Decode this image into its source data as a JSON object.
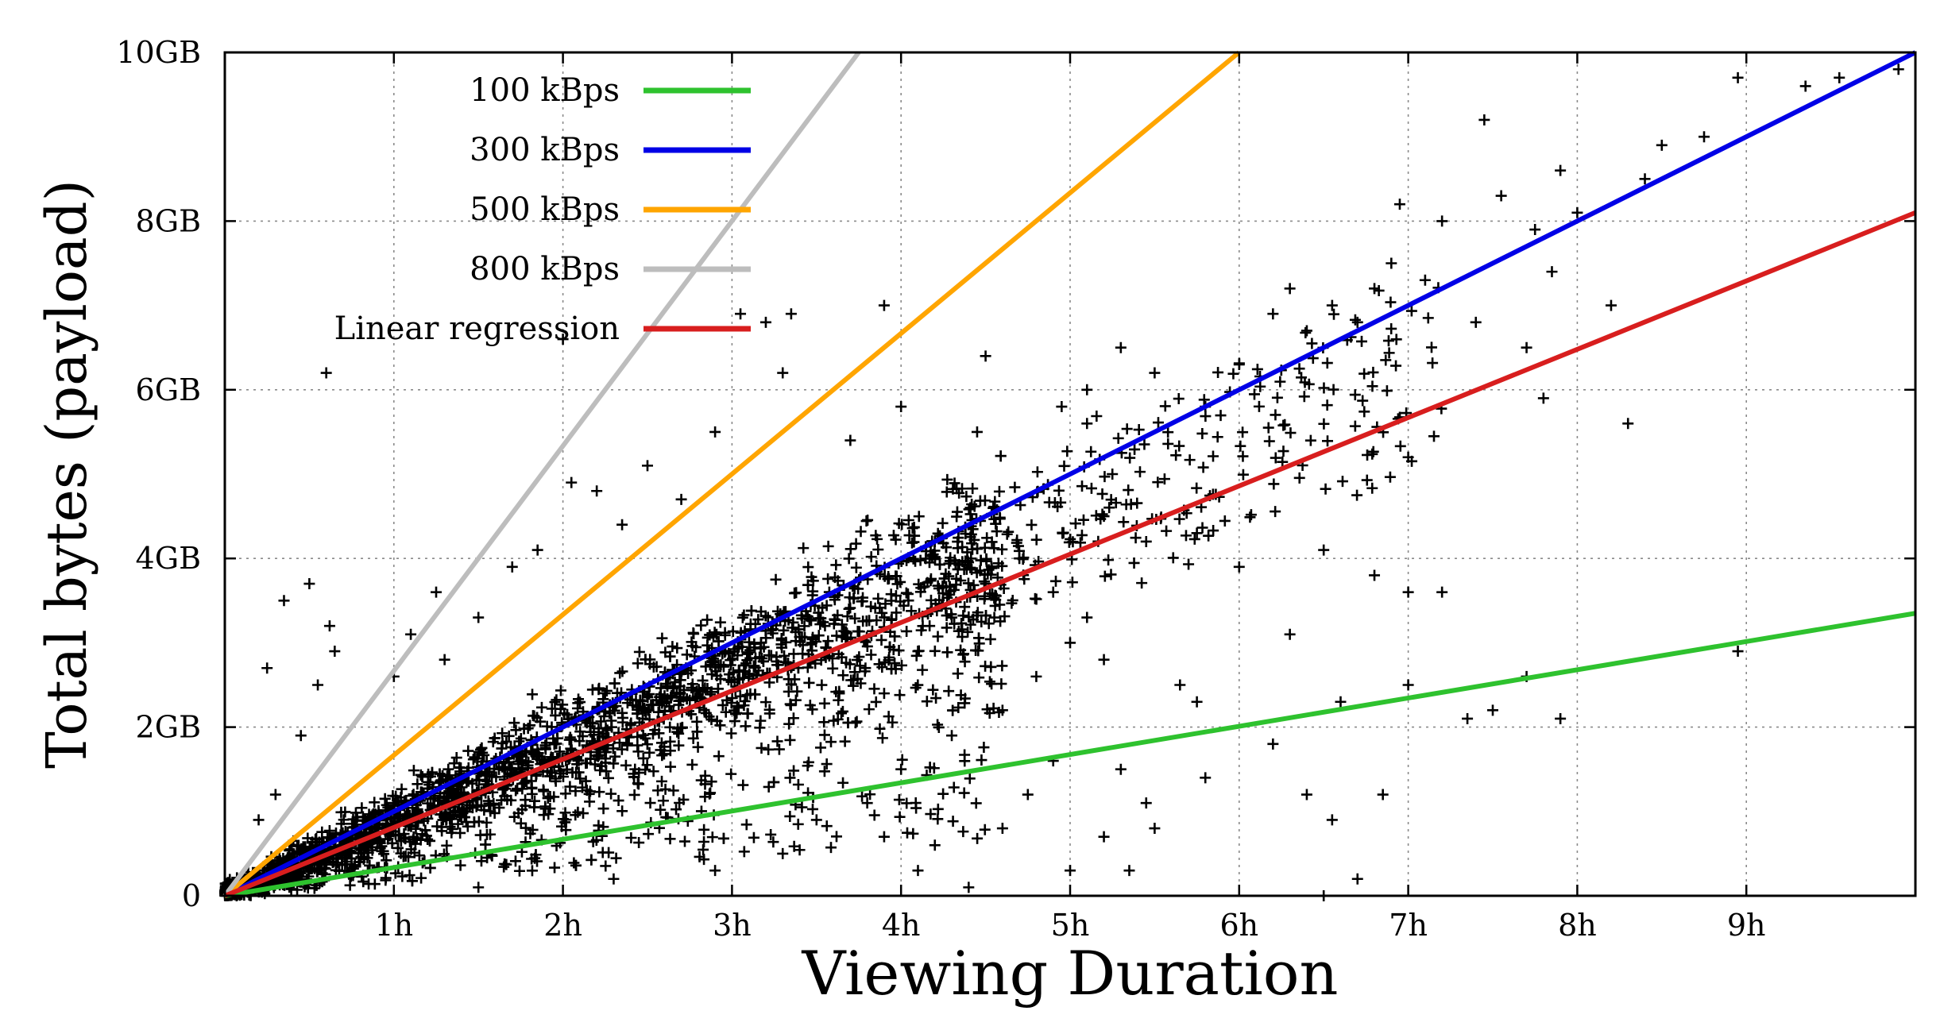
{
  "chart_data": {
    "type": "scatter",
    "title": "",
    "xlabel": "Viewing Duration",
    "ylabel": "Total bytes (payload)",
    "xlim": [
      0,
      10
    ],
    "ylim": [
      0,
      10
    ],
    "x_unit": "hours",
    "y_unit": "GB",
    "x_ticks": [
      {
        "value": 1,
        "label": "1h"
      },
      {
        "value": 2,
        "label": "2h"
      },
      {
        "value": 3,
        "label": "3h"
      },
      {
        "value": 4,
        "label": "4h"
      },
      {
        "value": 5,
        "label": "5h"
      },
      {
        "value": 6,
        "label": "6h"
      },
      {
        "value": 7,
        "label": "7h"
      },
      {
        "value": 8,
        "label": "8h"
      },
      {
        "value": 9,
        "label": "9h"
      }
    ],
    "y_ticks": [
      {
        "value": 0,
        "label": "0"
      },
      {
        "value": 2,
        "label": "2GB"
      },
      {
        "value": 4,
        "label": "4GB"
      },
      {
        "value": 6,
        "label": "6GB"
      },
      {
        "value": 8,
        "label": "8GB"
      },
      {
        "value": 10,
        "label": "10GB"
      }
    ],
    "grid": true,
    "legend_position": "top-left",
    "point_marker": "+",
    "lines": [
      {
        "name": "100 kBps",
        "color": "#2ec22e",
        "slope_gb_per_h": 0.335
      },
      {
        "name": "300 kBps",
        "color": "#0000e6",
        "slope_gb_per_h": 1.0
      },
      {
        "name": "500 kBps",
        "color": "#ffa500",
        "slope_gb_per_h": 1.667
      },
      {
        "name": "800 kBps",
        "color": "#bdbdbd",
        "slope_gb_per_h": 2.667
      },
      {
        "name": "Linear regression",
        "color": "#d81e1e",
        "slope_gb_per_h": 0.81
      }
    ],
    "points": [
      [
        0.25,
        2.7
      ],
      [
        0.35,
        3.5
      ],
      [
        0.5,
        3.7
      ],
      [
        0.6,
        6.2
      ],
      [
        0.62,
        3.2
      ],
      [
        0.65,
        2.9
      ],
      [
        0.55,
        2.5
      ],
      [
        0.45,
        1.9
      ],
      [
        0.3,
        1.2
      ],
      [
        0.2,
        0.9
      ],
      [
        1.0,
        2.6
      ],
      [
        1.1,
        3.1
      ],
      [
        1.25,
        3.6
      ],
      [
        1.3,
        2.8
      ],
      [
        1.5,
        3.3
      ],
      [
        1.7,
        3.9
      ],
      [
        1.85,
        4.1
      ],
      [
        2.0,
        6.6
      ],
      [
        2.05,
        4.9
      ],
      [
        2.2,
        4.8
      ],
      [
        2.35,
        4.4
      ],
      [
        2.5,
        5.1
      ],
      [
        2.7,
        4.7
      ],
      [
        2.9,
        5.5
      ],
      [
        3.05,
        6.9
      ],
      [
        3.2,
        6.8
      ],
      [
        3.35,
        6.9
      ],
      [
        3.3,
        6.2
      ],
      [
        3.55,
        3.2
      ],
      [
        3.7,
        5.4
      ],
      [
        3.9,
        7.0
      ],
      [
        4.0,
        5.8
      ],
      [
        4.2,
        4.2
      ],
      [
        4.45,
        5.5
      ],
      [
        4.5,
        6.4
      ],
      [
        4.95,
        5.8
      ],
      [
        5.1,
        5.6
      ],
      [
        5.25,
        5.0
      ],
      [
        5.5,
        6.2
      ],
      [
        5.45,
        4.2
      ],
      [
        5.1,
        6.0
      ],
      [
        5.3,
        6.5
      ],
      [
        5.2,
        4.5
      ],
      [
        5.8,
        5.8
      ],
      [
        5.75,
        4.3
      ],
      [
        6.0,
        6.3
      ],
      [
        6.2,
        6.9
      ],
      [
        6.3,
        7.2
      ],
      [
        6.4,
        6.7
      ],
      [
        6.55,
        7.0
      ],
      [
        6.7,
        6.8
      ],
      [
        6.8,
        7.2
      ],
      [
        6.9,
        7.5
      ],
      [
        6.95,
        8.2
      ],
      [
        7.0,
        5.2
      ],
      [
        7.1,
        7.3
      ],
      [
        7.2,
        8.0
      ],
      [
        7.4,
        6.8
      ],
      [
        7.55,
        8.3
      ],
      [
        7.75,
        7.9
      ],
      [
        7.85,
        7.4
      ],
      [
        7.9,
        8.6
      ],
      [
        8.0,
        8.1
      ],
      [
        8.2,
        7.0
      ],
      [
        8.3,
        5.6
      ],
      [
        8.4,
        8.5
      ],
      [
        8.5,
        8.9
      ],
      [
        8.75,
        9.0
      ],
      [
        8.95,
        9.7
      ],
      [
        9.35,
        9.6
      ],
      [
        9.55,
        9.7
      ],
      [
        9.9,
        9.8
      ],
      [
        7.45,
        9.2
      ],
      [
        7.7,
        6.5
      ],
      [
        7.8,
        5.9
      ],
      [
        7.0,
        3.6
      ],
      [
        7.2,
        3.6
      ],
      [
        6.8,
        3.8
      ],
      [
        6.5,
        4.1
      ],
      [
        6.6,
        2.3
      ],
      [
        6.3,
        3.1
      ],
      [
        6.0,
        3.9
      ],
      [
        5.75,
        2.3
      ],
      [
        5.65,
        2.5
      ],
      [
        6.2,
        1.8
      ],
      [
        6.4,
        1.2
      ],
      [
        6.5,
        0.0
      ],
      [
        6.55,
        0.9
      ],
      [
        6.85,
        1.2
      ],
      [
        7.0,
        2.5
      ],
      [
        7.35,
        2.1
      ],
      [
        7.5,
        2.2
      ],
      [
        7.7,
        2.6
      ],
      [
        7.9,
        2.1
      ],
      [
        8.95,
        2.9
      ],
      [
        5.45,
        1.1
      ],
      [
        5.3,
        1.5
      ],
      [
        5.5,
        0.8
      ],
      [
        5.8,
        1.4
      ],
      [
        4.2,
        0.6
      ],
      [
        4.6,
        0.8
      ],
      [
        4.75,
        1.2
      ],
      [
        4.9,
        1.6
      ],
      [
        5.0,
        0.3
      ],
      [
        5.2,
        0.7
      ],
      [
        5.35,
        0.3
      ],
      [
        4.4,
        0.1
      ],
      [
        4.1,
        0.3
      ],
      [
        3.9,
        0.7
      ],
      [
        6.7,
        0.2
      ],
      [
        0.8,
        0.4
      ],
      [
        1.5,
        0.1
      ],
      [
        2.3,
        0.2
      ],
      [
        2.9,
        0.3
      ],
      [
        3.3,
        0.5
      ],
      [
        3.5,
        0.9
      ],
      [
        3.8,
        1.1
      ],
      [
        4.0,
        1.5
      ],
      [
        4.3,
        1.9
      ],
      [
        4.6,
        2.2
      ],
      [
        4.8,
        2.6
      ],
      [
        5.0,
        3.0
      ],
      [
        5.1,
        3.3
      ],
      [
        5.2,
        2.8
      ],
      [
        4.9,
        3.6
      ],
      [
        4.7,
        4.0
      ],
      [
        4.5,
        3.7
      ],
      [
        4.3,
        3.3
      ],
      [
        4.1,
        2.9
      ],
      [
        3.9,
        2.4
      ]
    ]
  }
}
